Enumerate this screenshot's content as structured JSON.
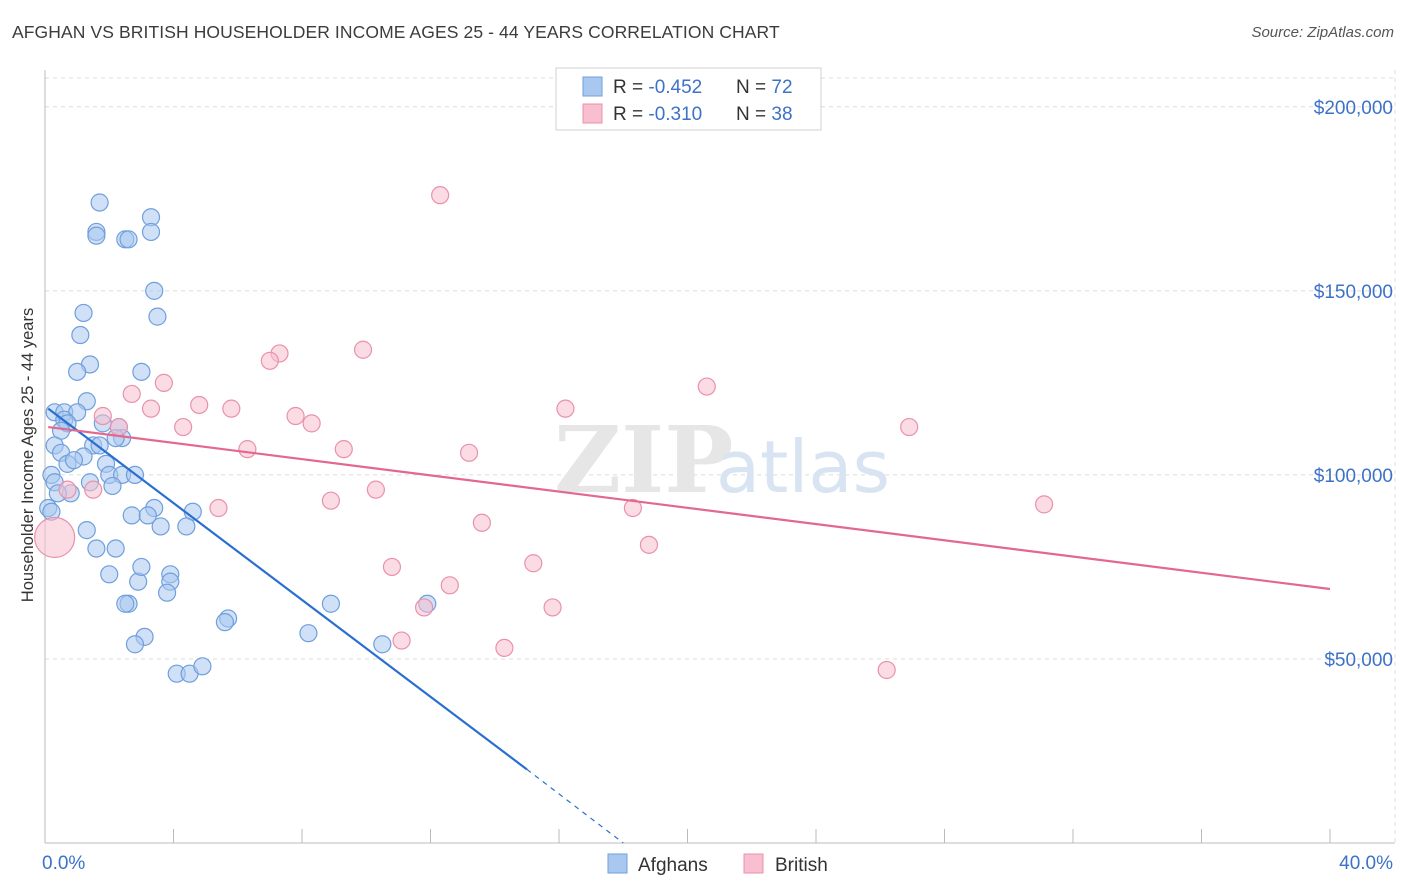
{
  "header": {
    "title": "AFGHAN VS BRITISH HOUSEHOLDER INCOME AGES 25 - 44 YEARS CORRELATION CHART",
    "source": "Source: ZipAtlas.com"
  },
  "watermark": {
    "zip": "ZIP",
    "atlas": "atlas"
  },
  "colors": {
    "afghans_fill": "#a9c8f0",
    "afghans_stroke": "#6f9fdc",
    "afghans_line": "#2a6fcf",
    "british_fill": "#f7bfd0",
    "british_stroke": "#e991ab",
    "british_line": "#e2688f",
    "axis_label": "#3d72c8",
    "grid": "#dcdcdc"
  },
  "legend": {
    "rows": [
      {
        "r_label": "R = ",
        "r_value": "-0.452",
        "n_label": "N = ",
        "n_value": "72"
      },
      {
        "r_label": "R = ",
        "r_value": "-0.310",
        "n_label": "N = ",
        "n_value": "38"
      }
    ]
  },
  "chart_data": {
    "type": "scatter",
    "title": "AFGHAN VS BRITISH HOUSEHOLDER INCOME AGES 25 - 44 YEARS CORRELATION CHART",
    "xlabel": "",
    "ylabel": "Householder Income Ages 25 - 44 years",
    "xlim": [
      0,
      40
    ],
    "ylim": [
      0,
      210000
    ],
    "x_tick_labels": [
      "0.0%",
      "40.0%"
    ],
    "y_ticks": [
      50000,
      100000,
      150000,
      200000
    ],
    "y_tick_labels": [
      "$50,000",
      "$100,000",
      "$150,000",
      "$200,000"
    ],
    "grid": true,
    "legend_position": "bottom-center",
    "series": [
      {
        "name": "Afghans",
        "r": -0.452,
        "n": 72,
        "trend": {
          "x0": 0.1,
          "y0": 118000,
          "x1": 15.0,
          "y1": 20000,
          "dash_to_x": 18.0,
          "dash_to_y": 0
        },
        "points": [
          [
            1.7,
            174000
          ],
          [
            1.6,
            166000
          ],
          [
            1.6,
            165000
          ],
          [
            3.3,
            170000
          ],
          [
            3.3,
            166000
          ],
          [
            2.5,
            164000
          ],
          [
            2.6,
            164000
          ],
          [
            3.4,
            150000
          ],
          [
            3.5,
            143000
          ],
          [
            1.2,
            144000
          ],
          [
            1.1,
            138000
          ],
          [
            1.4,
            130000
          ],
          [
            1.0,
            128000
          ],
          [
            3.0,
            128000
          ],
          [
            1.3,
            120000
          ],
          [
            0.3,
            117000
          ],
          [
            0.6,
            117000
          ],
          [
            1.0,
            117000
          ],
          [
            0.6,
            115000
          ],
          [
            0.7,
            114000
          ],
          [
            1.8,
            114000
          ],
          [
            0.5,
            112000
          ],
          [
            2.3,
            113000
          ],
          [
            2.4,
            110000
          ],
          [
            0.3,
            108000
          ],
          [
            1.5,
            108000
          ],
          [
            1.7,
            108000
          ],
          [
            2.2,
            110000
          ],
          [
            0.5,
            106000
          ],
          [
            1.2,
            105000
          ],
          [
            0.7,
            103000
          ],
          [
            1.9,
            103000
          ],
          [
            0.2,
            100000
          ],
          [
            2.0,
            100000
          ],
          [
            2.4,
            100000
          ],
          [
            0.3,
            98000
          ],
          [
            1.4,
            98000
          ],
          [
            2.1,
            97000
          ],
          [
            0.8,
            95000
          ],
          [
            0.1,
            91000
          ],
          [
            0.2,
            90000
          ],
          [
            2.7,
            89000
          ],
          [
            3.4,
            91000
          ],
          [
            3.2,
            89000
          ],
          [
            4.6,
            90000
          ],
          [
            1.3,
            85000
          ],
          [
            3.6,
            86000
          ],
          [
            4.4,
            86000
          ],
          [
            2.2,
            80000
          ],
          [
            2.0,
            73000
          ],
          [
            3.9,
            73000
          ],
          [
            3.9,
            71000
          ],
          [
            2.9,
            71000
          ],
          [
            3.8,
            68000
          ],
          [
            2.6,
            65000
          ],
          [
            2.5,
            65000
          ],
          [
            8.9,
            65000
          ],
          [
            11.9,
            65000
          ],
          [
            5.7,
            61000
          ],
          [
            5.6,
            60000
          ],
          [
            8.2,
            57000
          ],
          [
            3.1,
            56000
          ],
          [
            2.8,
            54000
          ],
          [
            10.5,
            54000
          ],
          [
            4.1,
            46000
          ],
          [
            4.5,
            46000
          ],
          [
            4.9,
            48000
          ],
          [
            1.6,
            80000
          ],
          [
            3.0,
            75000
          ],
          [
            0.9,
            104000
          ],
          [
            2.8,
            100000
          ],
          [
            0.4,
            95000
          ]
        ]
      },
      {
        "name": "British",
        "r": -0.31,
        "n": 38,
        "trend": {
          "x0": 0.1,
          "y0": 113000,
          "x1": 40.0,
          "y1": 69000
        },
        "points": [
          [
            12.3,
            176000
          ],
          [
            9.9,
            134000
          ],
          [
            7.3,
            133000
          ],
          [
            7.0,
            131000
          ],
          [
            3.7,
            125000
          ],
          [
            2.7,
            122000
          ],
          [
            20.6,
            124000
          ],
          [
            4.8,
            119000
          ],
          [
            5.8,
            118000
          ],
          [
            3.3,
            118000
          ],
          [
            16.2,
            118000
          ],
          [
            1.8,
            116000
          ],
          [
            7.8,
            116000
          ],
          [
            8.3,
            114000
          ],
          [
            4.3,
            113000
          ],
          [
            2.3,
            113000
          ],
          [
            26.9,
            113000
          ],
          [
            6.3,
            107000
          ],
          [
            9.3,
            107000
          ],
          [
            13.2,
            106000
          ],
          [
            0.7,
            96000
          ],
          [
            10.3,
            96000
          ],
          [
            1.5,
            96000
          ],
          [
            8.9,
            93000
          ],
          [
            5.4,
            91000
          ],
          [
            18.3,
            91000
          ],
          [
            31.1,
            92000
          ],
          [
            13.6,
            87000
          ],
          [
            18.8,
            81000
          ],
          [
            10.8,
            75000
          ],
          [
            15.2,
            76000
          ],
          [
            12.6,
            70000
          ],
          [
            11.8,
            64000
          ],
          [
            15.8,
            64000
          ],
          [
            11.1,
            55000
          ],
          [
            14.3,
            53000
          ],
          [
            26.2,
            47000
          ],
          [
            0.3,
            83000
          ]
        ],
        "large_point": [
          0.3,
          83000
        ]
      }
    ]
  }
}
